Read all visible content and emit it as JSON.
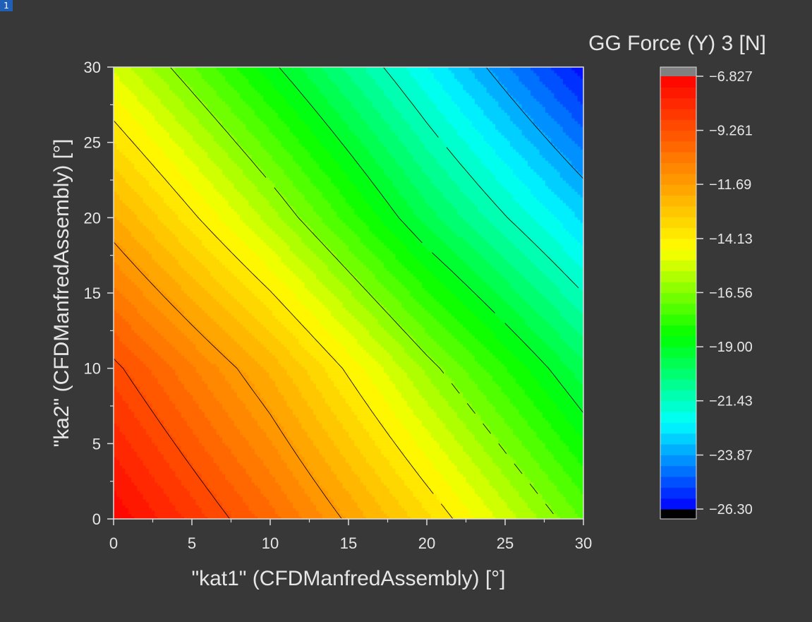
{
  "window": {
    "layer_badge": "1"
  },
  "chart_data": {
    "type": "heatmap",
    "subtype": "filled-contour",
    "title": "GG Force (Y) 3 [N]",
    "xlabel": "\"kat1\" (CFDManfredAssembly) [°]",
    "ylabel": "\"ka2\" (CFDManfredAssembly) [°]",
    "xlim": [
      0,
      30
    ],
    "ylim": [
      0,
      30
    ],
    "x_ticks": [
      0,
      5,
      10,
      15,
      20,
      25,
      30
    ],
    "y_ticks": [
      0,
      5,
      10,
      15,
      20,
      25,
      30
    ],
    "x_tick_labels": [
      "0",
      "5",
      "10",
      "15",
      "20",
      "25",
      "30"
    ],
    "y_tick_labels": [
      "0",
      "5",
      "10",
      "15",
      "20",
      "25",
      "30"
    ],
    "x": [
      0,
      10,
      20,
      30
    ],
    "y": [
      0,
      10,
      20,
      30
    ],
    "z": [
      [
        -6.9,
        -10.0,
        -13.5,
        -17.1
      ],
      [
        -9.0,
        -12.3,
        -16.2,
        -19.8
      ],
      [
        -12.1,
        -15.8,
        -19.7,
        -23.0
      ],
      [
        -15.2,
        -18.8,
        -22.4,
        -26.1
      ]
    ],
    "colorbar": {
      "min": -26.3,
      "max": -6.827,
      "ticks": [
        -6.827,
        -9.261,
        -11.69,
        -14.13,
        -16.56,
        -19.0,
        -21.43,
        -23.87,
        -26.3
      ],
      "tick_labels": [
        "−6.827",
        "−9.261",
        "−11.69",
        "−14.13",
        "−16.56",
        "−19.00",
        "−21.43",
        "−23.87",
        "−26.30"
      ],
      "overflow_color": "#808080",
      "underflow_color": "#000000"
    },
    "contour_levels": [
      -9.2,
      -11.6,
      -14.1,
      -16.5,
      -19.0,
      -21.4,
      -23.8
    ],
    "contour_line_color": "#000000",
    "colormap": [
      "#0000ff",
      "#0080ff",
      "#00ffff",
      "#00ff80",
      "#00ff00",
      "#80ff00",
      "#ffff00",
      "#ffbf00",
      "#ff8000",
      "#ff4000",
      "#ff0000"
    ],
    "grid": false,
    "background": "#383838",
    "text_color": "#e6e6e6"
  }
}
